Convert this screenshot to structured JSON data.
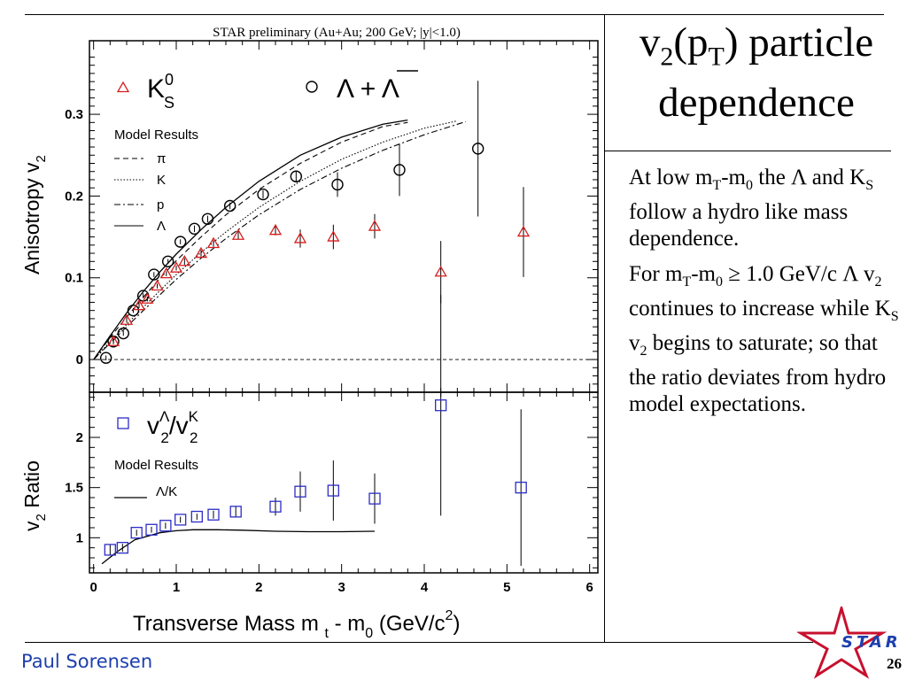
{
  "chart_data": [
    {
      "type": "scatter",
      "title": "STAR preliminary (Au+Au; 200 GeV; |y|<1.0)",
      "ylabel": "Anisotropy v2",
      "xlim": [
        -0.05,
        6.1
      ],
      "ylim": [
        -0.04,
        0.39
      ],
      "yticks": [
        0,
        0.1,
        0.2,
        0.3
      ],
      "ytick_labels": [
        "0",
        "0.1",
        "0.2",
        "0.3"
      ],
      "grid": false,
      "legend_position": "top-left",
      "series": [
        {
          "name": "K0S",
          "marker": "triangle",
          "color": "#d81e1e",
          "x": [
            0.24,
            0.4,
            0.55,
            0.65,
            0.77,
            0.88,
            1.0,
            1.1,
            1.3,
            1.45,
            1.75,
            2.2,
            2.5,
            2.9,
            3.4,
            4.2,
            5.2
          ],
          "y": [
            0.022,
            0.048,
            0.066,
            0.074,
            0.09,
            0.105,
            0.112,
            0.12,
            0.13,
            0.142,
            0.152,
            0.158,
            0.148,
            0.15,
            0.163,
            0.107,
            0.156
          ],
          "err": [
            0.003,
            0.003,
            0.003,
            0.003,
            0.003,
            0.003,
            0.003,
            0.004,
            0.004,
            0.004,
            0.005,
            0.006,
            0.011,
            0.015,
            0.015,
            0.038,
            0.055
          ]
        },
        {
          "name": "Λ + Λ̄",
          "marker": "circle",
          "color": "#000000",
          "x": [
            0.15,
            0.24,
            0.36,
            0.48,
            0.6,
            0.73,
            0.9,
            1.05,
            1.22,
            1.38,
            1.65,
            2.05,
            2.45,
            2.95,
            3.7,
            4.65
          ],
          "y": [
            0.002,
            0.022,
            0.032,
            0.06,
            0.078,
            0.104,
            0.12,
            0.144,
            0.16,
            0.172,
            0.188,
            0.202,
            0.224,
            0.214,
            0.232,
            0.258
          ],
          "err": [
            0.003,
            0.003,
            0.003,
            0.003,
            0.003,
            0.003,
            0.003,
            0.003,
            0.004,
            0.004,
            0.004,
            0.005,
            0.006,
            0.015,
            0.032,
            0.083
          ]
        }
      ],
      "legend_entries": [
        {
          "symbol": "K",
          "sup": "0",
          "sub": "S"
        },
        {
          "symbol": "Λ + Λ"
        }
      ],
      "model": {
        "title": "Model Results",
        "curves": [
          {
            "name": "π",
            "style": "dashed",
            "x": [
              0.0,
              0.2,
              0.4,
              0.6,
              0.8,
              1.0,
              1.3,
              1.6,
              2.0,
              2.5,
              3.0,
              3.5,
              3.8
            ],
            "y": [
              0.0,
              0.027,
              0.052,
              0.076,
              0.099,
              0.121,
              0.15,
              0.177,
              0.208,
              0.24,
              0.266,
              0.285,
              0.29
            ]
          },
          {
            "name": "K",
            "style": "dotted",
            "x": [
              0.0,
              0.2,
              0.4,
              0.6,
              0.8,
              1.0,
              1.3,
              1.6,
              2.0,
              2.5,
              3.0,
              3.5,
              4.0,
              4.4
            ],
            "y": [
              0.0,
              0.022,
              0.043,
              0.064,
              0.084,
              0.104,
              0.131,
              0.156,
              0.186,
              0.218,
              0.245,
              0.266,
              0.283,
              0.292
            ]
          },
          {
            "name": "p",
            "style": "dashdot",
            "x": [
              0.0,
              0.2,
              0.4,
              0.6,
              0.8,
              1.0,
              1.3,
              1.6,
              2.0,
              2.5,
              3.0,
              3.5,
              4.0,
              4.5
            ],
            "y": [
              0.0,
              0.02,
              0.04,
              0.06,
              0.079,
              0.098,
              0.124,
              0.148,
              0.177,
              0.208,
              0.234,
              0.256,
              0.275,
              0.291
            ]
          },
          {
            "name": "Λ",
            "style": "solid",
            "x": [
              0.0,
              0.2,
              0.4,
              0.6,
              0.8,
              1.0,
              1.3,
              1.6,
              2.0,
              2.5,
              3.0,
              3.5,
              3.8
            ],
            "y": [
              0.0,
              0.029,
              0.057,
              0.083,
              0.107,
              0.129,
              0.159,
              0.186,
              0.218,
              0.25,
              0.272,
              0.288,
              0.293
            ]
          }
        ]
      }
    },
    {
      "type": "scatter",
      "ylabel": "v2 Ratio",
      "xlabel": "Transverse Mass m t - m0 (GeV/c2)",
      "xlim": [
        -0.05,
        6.1
      ],
      "ylim": [
        0.65,
        2.45
      ],
      "xticks": [
        0,
        1,
        2,
        3,
        4,
        5,
        6
      ],
      "xtick_labels": [
        "0",
        "1",
        "2",
        "3",
        "4",
        "5",
        "6"
      ],
      "yticks": [
        1,
        1.5,
        2
      ],
      "ytick_labels": [
        "1",
        "1.5",
        "2"
      ],
      "grid": false,
      "legend_position": "top-left",
      "series": [
        {
          "name": "vΛ2/vK2",
          "marker": "square",
          "color": "#2c2cc8",
          "x": [
            0.2,
            0.35,
            0.52,
            0.7,
            0.87,
            1.05,
            1.25,
            1.45,
            1.72,
            2.2,
            2.5,
            2.9,
            3.4,
            4.2,
            5.17
          ],
          "y": [
            0.88,
            0.9,
            1.05,
            1.08,
            1.12,
            1.18,
            1.21,
            1.23,
            1.26,
            1.31,
            1.46,
            1.47,
            1.39,
            2.32,
            1.5
          ],
          "err": [
            0.05,
            0.04,
            0.03,
            0.03,
            0.03,
            0.03,
            0.03,
            0.04,
            0.05,
            0.09,
            0.2,
            0.3,
            0.25,
            1.1,
            0.78
          ]
        }
      ],
      "legend_entries": [
        {
          "symbol": "v",
          "sup": "Λ",
          "sub": "2",
          "slash": "/v",
          "sup2": "K",
          "sub2": "2"
        }
      ],
      "model": {
        "title": "Model Results",
        "curves": [
          {
            "name": "Λ/K",
            "style": "solid",
            "x": [
              0.1,
              0.3,
              0.5,
              0.8,
              1.0,
              1.2,
              1.5,
              1.8,
              2.2,
              2.6,
              3.0,
              3.4
            ],
            "y": [
              0.74,
              0.87,
              0.98,
              1.05,
              1.07,
              1.08,
              1.08,
              1.075,
              1.065,
              1.06,
              1.06,
              1.065
            ]
          }
        ]
      }
    }
  ],
  "slide": {
    "title_line1": "v2(pT) particle",
    "title_line2": "dependence",
    "paragraph1": "At low mT-m0 the Λ and KS follow a hydro like mass dependence.",
    "paragraph2": "For mT-m0 ≥ 1.0 GeV/c Λ v2 continues to increase while KS v2 begins to saturate; so that the ratio deviates from hydro model expectations.",
    "author": "Paul Sorensen",
    "page_number": "26",
    "logo_text": "STAR"
  },
  "colors": {
    "k0s": "#d81e1e",
    "lambda": "#000000",
    "ratio": "#2c2cc8",
    "author": "#1d3fae",
    "star_logo": "#c8102e"
  }
}
